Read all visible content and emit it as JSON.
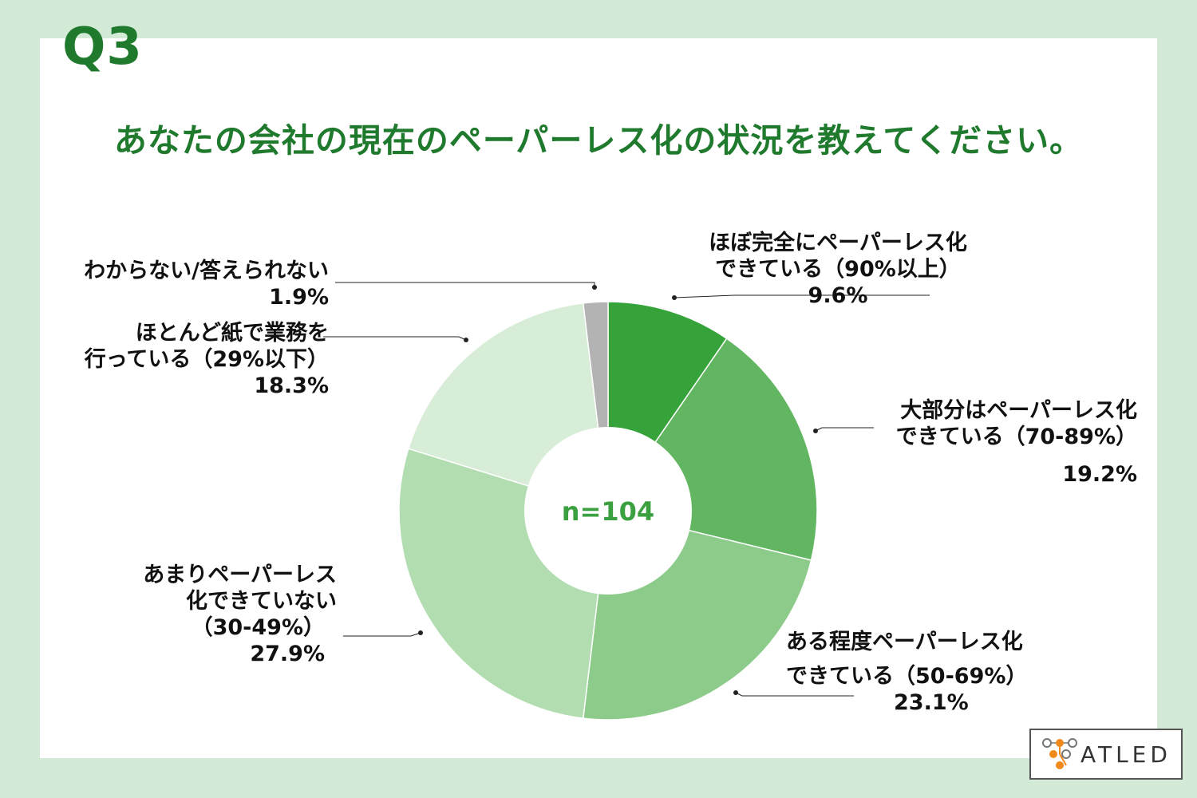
{
  "header": {
    "q_label": "Q3",
    "question": "あなたの会社の現在のペーパーレス化の状況を教えてください。"
  },
  "colors": {
    "background": "#d3ead6",
    "title": "#1f7a2d",
    "slices": [
      "#35a23a",
      "#62b662",
      "#8dcb8a",
      "#b1ddb0",
      "#d8edd7",
      "#b3b3b3"
    ],
    "center_text": "#3aa040"
  },
  "chart_data": {
    "type": "pie",
    "donut": true,
    "center_label": "n=104",
    "slices": [
      {
        "label_lines": [
          "ほぼ完全にペーパーレス化",
          "できている（90%以上）"
        ],
        "value": 9.6,
        "value_text": "9.6%"
      },
      {
        "label_lines": [
          "大部分はペーパーレス化",
          "できている（70-89%）"
        ],
        "value": 19.2,
        "value_text": "19.2%"
      },
      {
        "label_lines": [
          "ある程度ペーパーレス化",
          "できている（50-69%）"
        ],
        "value": 23.1,
        "value_text": "23.1%"
      },
      {
        "label_lines": [
          "あまりペーパーレス",
          "化できていない",
          "（30-49%）"
        ],
        "value": 27.9,
        "value_text": "27.9%"
      },
      {
        "label_lines": [
          "ほとんど紙で業務を",
          "行っている（29%以下）"
        ],
        "value": 18.3,
        "value_text": "18.3%"
      },
      {
        "label_lines": [
          "わからない/答えられない"
        ],
        "value": 1.9,
        "value_text": "1.9%"
      }
    ]
  },
  "logo": {
    "text": "ATLED",
    "icon": "atled-logo-icon"
  }
}
